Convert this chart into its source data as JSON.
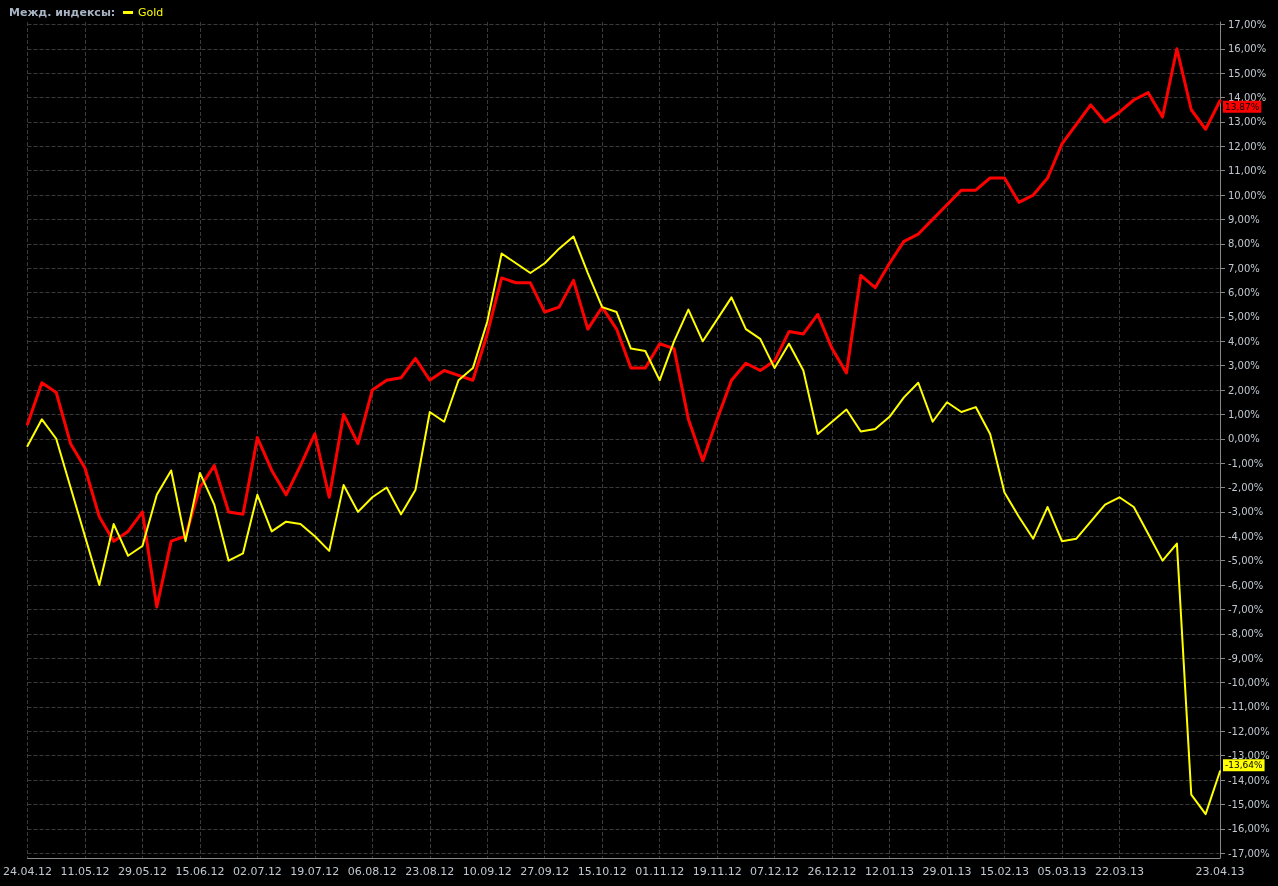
{
  "chart_data": {
    "type": "line",
    "title": "Межд. индексы:",
    "categories": [
      "24.04.12",
      null,
      null,
      null,
      "11.05.12",
      null,
      null,
      null,
      "29.05.12",
      null,
      null,
      null,
      "15.06.12",
      null,
      null,
      null,
      "02.07.12",
      null,
      null,
      null,
      "19.07.12",
      null,
      null,
      null,
      "06.08.12",
      null,
      null,
      null,
      "23.08.12",
      null,
      null,
      null,
      "10.09.12",
      null,
      null,
      null,
      "27.09.12",
      null,
      null,
      null,
      "15.10.12",
      null,
      null,
      null,
      "01.11.12",
      null,
      null,
      null,
      "19.11.12",
      null,
      null,
      null,
      "07.12.12",
      null,
      null,
      null,
      "26.12.12",
      null,
      null,
      null,
      "12.01.13",
      null,
      null,
      null,
      "29.01.13",
      null,
      null,
      null,
      "15.02.13",
      null,
      null,
      null,
      "05.03.13",
      null,
      null,
      null,
      "22.03.13",
      null,
      null,
      null,
      null,
      null,
      null,
      "23.04.13"
    ],
    "series": [
      {
        "name": "Gold",
        "color": "#ffff00",
        "values": [
          -0.3,
          0.8,
          0,
          -2.0,
          -4.0,
          -6.0,
          -3.5,
          -4.8,
          -4.4,
          -2.3,
          -1.3,
          -4.2,
          -1.4,
          -2.7,
          -5.0,
          -4.7,
          -2.3,
          -3.8,
          -3.4,
          -3.5,
          -4.0,
          -4.6,
          -1.9,
          -3.0,
          -2.4,
          -2.0,
          -3.1,
          -2.1,
          1.1,
          0.7,
          2.4,
          2.9,
          4.8,
          7.6,
          7.2,
          6.8,
          7.2,
          7.8,
          8.3,
          6.8,
          5.4,
          5.2,
          3.7,
          3.6,
          2.4,
          4.0,
          5.3,
          4.0,
          4.9,
          5.8,
          4.5,
          4.1,
          2.9,
          3.9,
          2.8,
          0.2,
          0.7,
          1.2,
          0.3,
          0.4,
          0.9,
          1.7,
          2.3,
          0.7,
          1.5,
          1.1,
          1.3,
          0.2,
          -2.2,
          -3.2,
          -4.1,
          -2.8,
          -4.2,
          -4.1,
          -3.4,
          -2.7,
          -2.4,
          -2.8,
          -3.9,
          -5.0,
          -4.3,
          -14.6,
          -15.4,
          -13.64
        ],
        "value_labels": [
          null,
          null,
          null,
          null,
          null,
          null,
          null,
          null,
          null,
          null,
          null,
          null,
          null,
          null,
          null,
          null,
          null,
          null,
          null,
          null,
          null,
          null,
          null,
          null,
          null,
          null,
          null,
          null,
          null,
          null,
          null,
          null,
          null,
          null,
          null,
          null,
          null,
          null,
          null,
          null,
          null,
          null,
          null,
          null,
          null,
          null,
          null,
          null,
          null,
          null,
          null,
          null,
          null,
          null,
          null,
          null,
          null,
          null,
          null,
          null,
          null,
          null,
          null,
          null,
          null,
          null,
          null,
          null,
          null,
          null,
          null,
          null,
          null,
          null,
          null,
          null,
          null,
          null,
          null,
          null,
          null,
          null,
          null,
          "-13,64%"
        ]
      },
      {
        "color": "#ff0000",
        "values": [
          0.6,
          2.3,
          1.9,
          -0.2,
          -1.2,
          -3.2,
          -4.2,
          -3.8,
          -3.0,
          -6.9,
          -4.2,
          -4.0,
          -2.0,
          -1.1,
          -3.0,
          -3.1,
          0.05,
          -1.3,
          -2.3,
          -1.1,
          0.2,
          -2.4,
          1.0,
          -0.2,
          2.0,
          2.4,
          2.5,
          3.3,
          2.4,
          2.8,
          2.6,
          2.4,
          4.3,
          6.6,
          6.4,
          6.4,
          5.2,
          5.4,
          6.5,
          4.5,
          5.4,
          4.5,
          2.9,
          2.9,
          3.9,
          3.7,
          0.8,
          -0.9,
          0.8,
          2.4,
          3.1,
          2.8,
          3.2,
          4.4,
          4.3,
          5.1,
          3.7,
          2.7,
          6.7,
          6.2,
          7.2,
          8.1,
          8.4,
          9.0,
          9.6,
          10.2,
          10.2,
          10.7,
          10.7,
          9.7,
          10.0,
          10.7,
          12.1,
          12.9,
          13.7,
          13.0,
          13.4,
          13.9,
          14.2,
          13.2,
          16.0,
          13.5,
          12.7,
          13.87
        ],
        "value_labels": [
          null,
          null,
          null,
          null,
          null,
          null,
          null,
          null,
          null,
          null,
          null,
          null,
          null,
          null,
          null,
          null,
          null,
          null,
          null,
          null,
          null,
          null,
          null,
          null,
          null,
          null,
          null,
          null,
          null,
          null,
          null,
          null,
          null,
          null,
          null,
          null,
          null,
          null,
          null,
          null,
          null,
          null,
          null,
          null,
          null,
          null,
          null,
          null,
          null,
          null,
          null,
          null,
          null,
          null,
          null,
          null,
          null,
          null,
          null,
          null,
          null,
          null,
          null,
          null,
          null,
          null,
          null,
          null,
          null,
          null,
          null,
          null,
          null,
          null,
          null,
          null,
          null,
          null,
          null,
          null,
          null,
          null,
          null,
          "13,87%"
        ]
      }
    ],
    "ylim": [
      -17.2,
      17.1
    ],
    "yticks": [
      {
        "value": -17,
        "label": "-17,00%"
      },
      {
        "value": -16,
        "label": "-16,00%"
      },
      {
        "value": -15,
        "label": "-15,00%"
      },
      {
        "value": -14,
        "label": "-14,00%"
      },
      {
        "value": -13,
        "label": "-13,00%"
      },
      {
        "value": -12,
        "label": "-12,00%"
      },
      {
        "value": -11,
        "label": "-11,00%"
      },
      {
        "value": -10,
        "label": "-10,00%"
      },
      {
        "value": -9,
        "label": "-9,00%"
      },
      {
        "value": -8,
        "label": "-8,00%"
      },
      {
        "value": -7,
        "label": "-7,00%"
      },
      {
        "value": -6,
        "label": "-6,00%"
      },
      {
        "value": -5,
        "label": "-5,00%"
      },
      {
        "value": -4,
        "label": "-4,00%"
      },
      {
        "value": -3,
        "label": "-3,00%"
      },
      {
        "value": -2,
        "label": "-2,00%"
      },
      {
        "value": -1,
        "label": "-1,00%"
      },
      {
        "value": 0,
        "label": "0,00%"
      },
      {
        "value": 1,
        "label": "1,00%"
      },
      {
        "value": 2,
        "label": "2,00%"
      },
      {
        "value": 3,
        "label": "3,00%"
      },
      {
        "value": 4,
        "label": "4,00%"
      },
      {
        "value": 5,
        "label": "5,00%"
      },
      {
        "value": 6,
        "label": "6,00%"
      },
      {
        "value": 7,
        "label": "7,00%"
      },
      {
        "value": 8,
        "label": "8,00%"
      },
      {
        "value": 9,
        "label": "9,00%"
      },
      {
        "value": 10,
        "label": "10,00%"
      },
      {
        "value": 11,
        "label": "11,00%"
      },
      {
        "value": 12,
        "label": "12,00%"
      },
      {
        "value": 13,
        "label": "13,00%"
      },
      {
        "value": 14,
        "label": "14,00%"
      },
      {
        "value": 15,
        "label": "15,00%"
      },
      {
        "value": 16,
        "label": "16,00%"
      },
      {
        "value": 17,
        "label": "17,00%"
      }
    ],
    "grid": true,
    "legend": "top left",
    "marker": "none",
    "line_style": "solid"
  }
}
